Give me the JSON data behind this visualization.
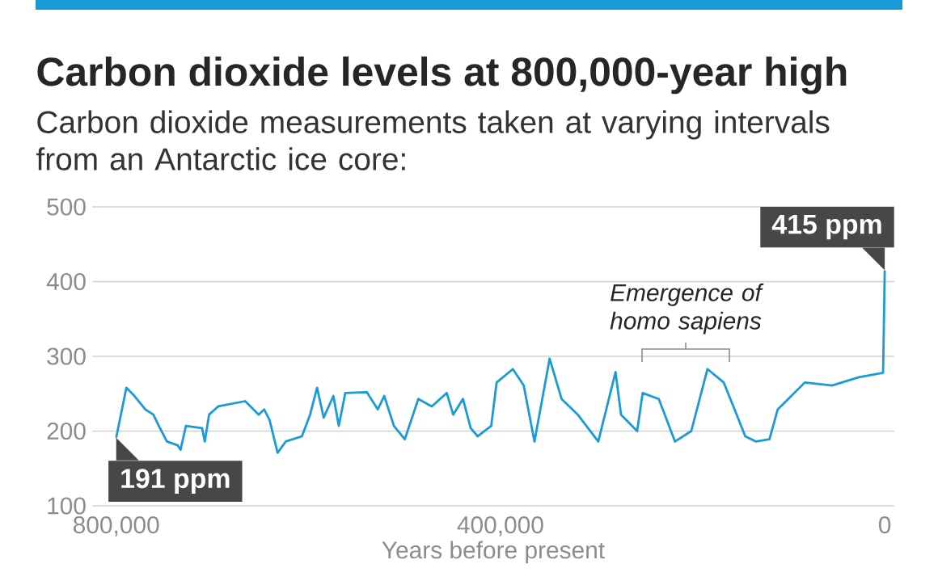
{
  "chart_data": {
    "type": "line",
    "title": "Carbon dioxide levels at 800,000-year high",
    "subtitle": "Carbon dioxide measurements taken at varying intervals from an Antarctic ice core:",
    "xlabel": "Years before present",
    "x": [
      800000,
      789400,
      781000,
      769700,
      761300,
      755600,
      747200,
      736000,
      733000,
      727400,
      710600,
      707800,
      703300,
      693800,
      665700,
      651700,
      646000,
      640400,
      632000,
      623600,
      606700,
      598200,
      590900,
      584000,
      573900,
      568300,
      561500,
      539000,
      527700,
      521000,
      510900,
      499600,
      485500,
      471500,
      455900,
      449200,
      439000,
      431000,
      423700,
      409600,
      404000,
      387100,
      375800,
      364600,
      348800,
      336400,
      319500,
      298200,
      280200,
      274500,
      257700,
      252000,
      235200,
      218300,
      201400,
      184500,
      167600,
      156300,
      145200,
      133900,
      120000,
      111400,
      83200,
      55000,
      27000,
      1700,
      0
    ],
    "series": [
      {
        "color": "#1a9bd7",
        "values": [
          191,
          258,
          247,
          229,
          222,
          207,
          186,
          181,
          175,
          207,
          204,
          186,
          222,
          233,
          240,
          222,
          229,
          215,
          171,
          186,
          193,
          222,
          258,
          218,
          247,
          207,
          251,
          252,
          229,
          247,
          207,
          189,
          243,
          233,
          251,
          222,
          243,
          204,
          193,
          207,
          265,
          283,
          261,
          186,
          297,
          243,
          222,
          186,
          279,
          222,
          200,
          251,
          243,
          186,
          200,
          283,
          265,
          229,
          193,
          186,
          189,
          229,
          265,
          261,
          272,
          278,
          415
        ]
      }
    ],
    "xlim": [
      825000,
      -10000
    ],
    "xticks": [
      {
        "value": 800000,
        "label": "800,000"
      },
      {
        "value": 400000,
        "label": "400,000"
      },
      0
    ],
    "ylim": [
      100,
      500
    ],
    "yticks": [
      100,
      200,
      300,
      400,
      500
    ],
    "grid": "y",
    "annotations": [
      {
        "text": "191 ppm",
        "x": 800000,
        "y": 191
      },
      {
        "text": "415 ppm",
        "x": 0,
        "y": 415
      },
      "Emergence of homo sapiens"
    ]
  }
}
